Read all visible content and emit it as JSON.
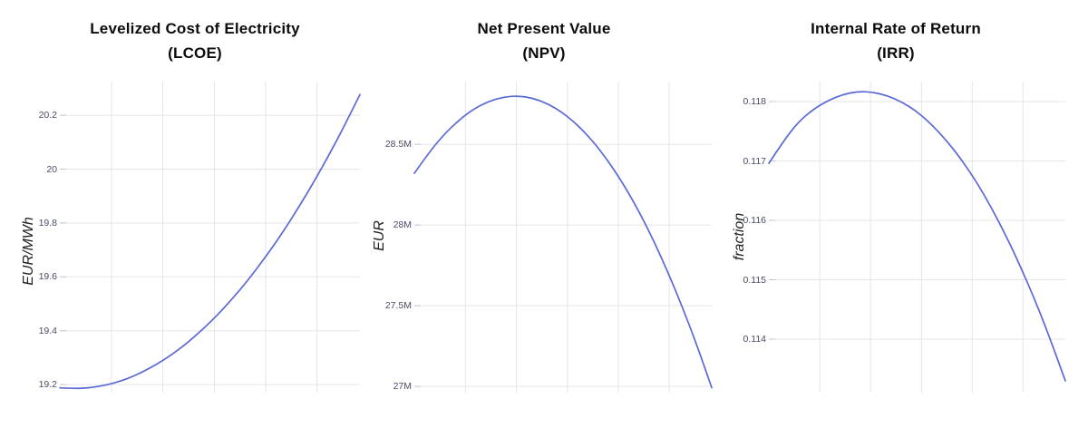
{
  "colors": {
    "background": "#ffffff",
    "line": "#5b69d6",
    "grid": "#e4e5e9",
    "tick_stub": "#c4c5ce",
    "tick_text": "#474c66",
    "title_text": "#0c0c0c",
    "axis_label_text": "#222222"
  },
  "grid": {
    "vertical_fractions": [
      0.172,
      0.343,
      0.515,
      0.686,
      0.857
    ],
    "gridlines_on": true,
    "x_tick_labels_shown": false
  },
  "chart_data": [
    {
      "type": "line",
      "title": "Levelized Cost of Electricity (LCOE)",
      "title_line1": "Levelized Cost of Electricity",
      "title_line2": "(LCOE)",
      "ylabel": "EUR/MWh",
      "xlabel": "",
      "legend": "none",
      "ylim": [
        19.17,
        20.325
      ],
      "yticks": [
        {
          "value": 19.2,
          "label": "19.2"
        },
        {
          "value": 19.4,
          "label": "19.4"
        },
        {
          "value": 19.6,
          "label": "19.6"
        },
        {
          "value": 19.8,
          "label": "19.8"
        },
        {
          "value": 20.0,
          "label": "20"
        },
        {
          "value": 20.2,
          "label": "20.2"
        }
      ],
      "x": [
        0,
        0.05,
        0.1,
        0.15,
        0.2,
        0.25,
        0.3,
        0.35,
        0.4,
        0.45,
        0.5,
        0.55,
        0.6,
        0.65,
        0.7,
        0.75,
        0.8,
        0.85,
        0.9,
        0.95,
        1
      ],
      "y": [
        19.188,
        19.185,
        19.188,
        19.197,
        19.212,
        19.233,
        19.261,
        19.294,
        19.333,
        19.379,
        19.43,
        19.488,
        19.551,
        19.621,
        19.696,
        19.778,
        19.866,
        19.959,
        20.059,
        20.165,
        20.277
      ]
    },
    {
      "type": "line",
      "title": "Net Present Value (NPV)",
      "title_line1": "Net Present Value",
      "title_line2": "(NPV)",
      "ylabel": "EUR",
      "xlabel": "",
      "legend": "none",
      "ylim": [
        26.961,
        28.888
      ],
      "yticks": [
        {
          "value": 27.0,
          "label": "27M"
        },
        {
          "value": 27.5,
          "label": "27.5M"
        },
        {
          "value": 28.0,
          "label": "28M"
        },
        {
          "value": 28.5,
          "label": "28.5M"
        }
      ],
      "x": [
        0,
        0.05,
        0.1,
        0.15,
        0.2,
        0.25,
        0.3,
        0.35,
        0.4,
        0.45,
        0.5,
        0.55,
        0.6,
        0.65,
        0.7,
        0.75,
        0.8,
        0.85,
        0.9,
        0.95,
        1
      ],
      "y": [
        28.32,
        28.451,
        28.561,
        28.65,
        28.719,
        28.766,
        28.793,
        28.8,
        28.785,
        28.75,
        28.694,
        28.617,
        28.52,
        28.401,
        28.262,
        28.102,
        27.921,
        27.719,
        27.497,
        27.256,
        26.992
      ]
    },
    {
      "type": "line",
      "title": "Internal Rate of Return (IRR)",
      "title_line1": "Internal Rate of Return",
      "title_line2": "(IRR)",
      "ylabel": "fraction",
      "xlabel": "",
      "legend": "none",
      "ylim": [
        0.1131,
        0.118336
      ],
      "yticks": [
        {
          "value": 0.114,
          "label": "0.114"
        },
        {
          "value": 0.115,
          "label": "0.115"
        },
        {
          "value": 0.116,
          "label": "0.116"
        },
        {
          "value": 0.117,
          "label": "0.117"
        },
        {
          "value": 0.118,
          "label": "0.118"
        }
      ],
      "x": [
        0,
        0.05,
        0.1,
        0.15,
        0.2,
        0.25,
        0.3,
        0.35,
        0.4,
        0.45,
        0.5,
        0.55,
        0.6,
        0.65,
        0.7,
        0.75,
        0.8,
        0.85,
        0.9,
        0.95,
        1
      ],
      "y": [
        0.11696,
        0.11734,
        0.11766,
        0.11787,
        0.11802,
        0.11812,
        0.11817,
        0.11816,
        0.1181,
        0.11799,
        0.11783,
        0.11761,
        0.11734,
        0.11702,
        0.11665,
        0.11622,
        0.11574,
        0.11521,
        0.11463,
        0.11399,
        0.1133
      ]
    }
  ]
}
